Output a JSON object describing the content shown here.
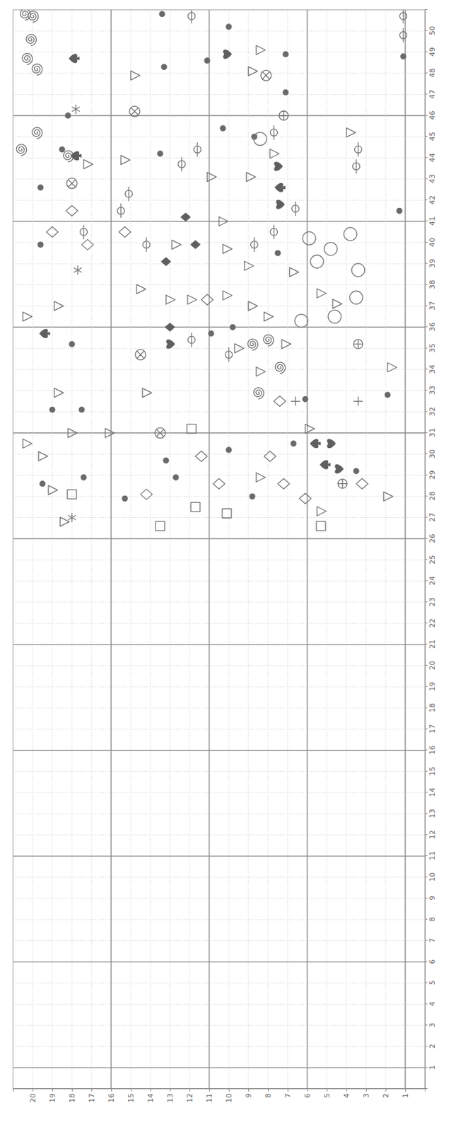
{
  "chart_data": {
    "type": "scatter",
    "xlim": [
      0,
      51
    ],
    "ylim": [
      0,
      21
    ],
    "xticks": [
      1,
      2,
      3,
      4,
      5,
      6,
      7,
      8,
      9,
      10,
      11,
      12,
      13,
      14,
      15,
      16,
      17,
      18,
      19,
      20,
      21,
      22,
      23,
      24,
      25,
      26,
      27,
      28,
      29,
      30,
      31,
      32,
      33,
      34,
      35,
      36,
      37,
      38,
      39,
      40,
      41,
      42,
      43,
      44,
      45,
      46,
      47,
      48,
      49,
      50
    ],
    "yticks": [
      1,
      2,
      3,
      4,
      5,
      6,
      7,
      8,
      9,
      10,
      11,
      12,
      13,
      14,
      15,
      16,
      17,
      18,
      19,
      20
    ],
    "grid": true,
    "series": [
      {
        "marker": "spiral",
        "color": "#6f6f6f",
        "x": [
          50.8,
          50.7,
          49.6,
          48.7,
          48.2,
          45.2,
          44.4,
          44.1,
          35.2,
          35.4,
          34.1,
          32.9
        ],
        "values": [
          20.4,
          20.0,
          20.1,
          20.3,
          19.8,
          19.8,
          20.6,
          18.2,
          8.8,
          8.0,
          7.4,
          8.5
        ]
      },
      {
        "marker": "dot",
        "color": "#6a6a6a",
        "x": [
          48.3,
          50.8,
          48.6,
          50.2,
          48.9,
          47.1,
          48.8,
          46.0,
          44.4,
          42.6,
          44.2,
          45.4,
          45.0,
          41.5,
          39.9,
          39.5,
          35.2,
          35.7,
          36.0,
          32.8,
          32.1,
          32.1,
          32.6,
          30.5,
          29.7,
          30.2,
          28.9,
          28.9,
          28.6,
          27.9,
          28.0,
          29.2
        ],
        "values": [
          13.3,
          13.4,
          11.1,
          10.0,
          7.1,
          7.1,
          1.1,
          18.2,
          18.5,
          19.6,
          13.5,
          10.3,
          8.7,
          1.3,
          19.6,
          7.5,
          18.0,
          10.9,
          9.8,
          1.9,
          19.0,
          17.5,
          6.1,
          6.7,
          13.2,
          10.0,
          12.7,
          17.4,
          19.5,
          15.3,
          8.8,
          3.5
        ]
      },
      {
        "marker": "triangle",
        "color": "#707070",
        "x": [
          47.9,
          49.1,
          48.1,
          43.7,
          43.9,
          43.1,
          44.2,
          43.1,
          45.2,
          41.0,
          39.9,
          39.7,
          38.9,
          38.6,
          37.6,
          37.1,
          37.8,
          37.3,
          37.3,
          37.5,
          37.0,
          36.5,
          37.0,
          36.5,
          35.0,
          33.9,
          35.2,
          34.1,
          32.9,
          32.9,
          30.5,
          31.0,
          31.0,
          31.2,
          29.9,
          28.3,
          26.8,
          28.9,
          27.3,
          28.0
        ],
        "values": [
          14.8,
          8.4,
          8.8,
          17.2,
          15.3,
          10.9,
          7.7,
          8.9,
          3.8,
          10.3,
          12.7,
          10.1,
          9.0,
          6.7,
          5.3,
          4.5,
          14.5,
          13.0,
          11.9,
          10.1,
          8.8,
          8.0,
          18.7,
          20.3,
          9.5,
          8.4,
          7.1,
          1.7,
          14.2,
          18.7,
          20.3,
          18.0,
          16.1,
          5.9,
          19.5,
          19.0,
          18.4,
          8.4,
          5.3,
          1.9
        ]
      },
      {
        "marker": "spade",
        "color": "#5f5f5f",
        "x": [
          48.7,
          44.1,
          42.6,
          35.7,
          30.5,
          29.5
        ],
        "values": [
          17.9,
          17.8,
          7.4,
          19.4,
          5.6,
          5.1
        ]
      },
      {
        "marker": "heart",
        "color": "#5f5f5f",
        "x": [
          48.9,
          43.6,
          41.8,
          35.2,
          30.5,
          29.3
        ],
        "values": [
          10.1,
          7.5,
          7.4,
          13.0,
          4.8,
          4.4
        ]
      },
      {
        "marker": "circle-x",
        "color": "#6f6f6f",
        "x": [
          47.9,
          46.2,
          42.8,
          34.7,
          31.0
        ],
        "values": [
          8.1,
          14.8,
          18.0,
          14.5,
          13.5
        ]
      },
      {
        "marker": "circle-plus",
        "color": "#6f6f6f",
        "x": [
          46.0,
          35.2,
          28.6
        ],
        "values": [
          7.2,
          3.4,
          4.2
        ]
      },
      {
        "marker": "circle-bar",
        "color": "#737373",
        "x": [
          50.7,
          50.7,
          49.8,
          44.4,
          43.7,
          42.3,
          41.5,
          45.2,
          41.6,
          44.4,
          43.6,
          40.5,
          39.9,
          39.9,
          40.5,
          35.4,
          34.7
        ],
        "values": [
          11.9,
          1.1,
          1.1,
          11.6,
          12.4,
          15.1,
          15.5,
          7.7,
          6.6,
          3.4,
          3.5,
          17.4,
          14.2,
          8.7,
          7.7,
          11.9,
          10.0
        ]
      },
      {
        "marker": "circle",
        "color": "#767676",
        "x": [
          44.9,
          40.2,
          39.1,
          39.7,
          40.4,
          38.7,
          37.4,
          36.3,
          36.5
        ],
        "values": [
          8.4,
          5.9,
          5.5,
          4.8,
          3.8,
          3.4,
          3.5,
          6.3,
          4.6
        ]
      },
      {
        "marker": "diamond",
        "color": "#737373",
        "x": [
          41.5,
          40.5,
          39.9,
          40.5,
          37.3,
          32.5,
          29.9,
          28.6,
          28.1,
          29.9,
          28.6,
          27.9,
          28.6
        ],
        "values": [
          18.0,
          19.0,
          17.2,
          15.3,
          11.1,
          7.4,
          11.4,
          10.5,
          14.2,
          7.9,
          7.2,
          6.1,
          3.2
        ]
      },
      {
        "marker": "filled-diamond",
        "color": "#5f5f5f",
        "x": [
          39.1,
          39.9,
          41.2,
          36.0
        ],
        "values": [
          13.2,
          11.7,
          12.2,
          13.0
        ]
      },
      {
        "marker": "square",
        "color": "#737373",
        "x": [
          31.2,
          28.1,
          26.6,
          27.5,
          27.2,
          26.6
        ],
        "values": [
          11.9,
          18.0,
          13.5,
          11.7,
          10.1,
          5.3
        ]
      },
      {
        "marker": "asterisk",
        "color": "#707070",
        "x": [
          46.3,
          38.7,
          27.0
        ],
        "values": [
          17.8,
          17.7,
          18.0
        ]
      },
      {
        "marker": "plus",
        "color": "#707070",
        "x": [
          32.5,
          32.5
        ],
        "values": [
          6.6,
          3.4
        ]
      }
    ]
  }
}
